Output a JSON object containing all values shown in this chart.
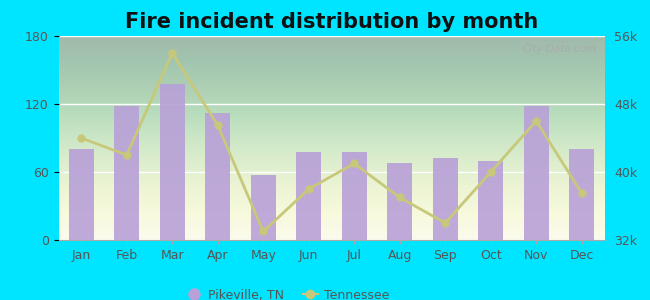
{
  "title": "Fire incident distribution by month",
  "months": [
    "Jan",
    "Feb",
    "Mar",
    "Apr",
    "May",
    "Jun",
    "Jul",
    "Aug",
    "Sep",
    "Oct",
    "Nov",
    "Dec"
  ],
  "pikeville_values": [
    80,
    118,
    138,
    112,
    57,
    78,
    78,
    68,
    72,
    70,
    118,
    80
  ],
  "tennessee_values": [
    44000,
    42000,
    54000,
    45500,
    33000,
    38000,
    41000,
    37000,
    34000,
    40000,
    46000,
    37500
  ],
  "bar_color": "#b8a0d8",
  "line_color": "#c8c87a",
  "background_outer": "#00e5ff",
  "background_plot_top": "#d8eec8",
  "background_plot_bottom": "#f8f8f0",
  "ylim_left": [
    0,
    180
  ],
  "ylim_right": [
    32000,
    56000
  ],
  "yticks_left": [
    0,
    60,
    120,
    180
  ],
  "yticks_right": [
    32000,
    40000,
    48000,
    56000
  ],
  "title_fontsize": 15,
  "watermark_text": "City-Data.com",
  "legend_pikeville_color": "#b8a0d8",
  "legend_tennessee_color": "#c8c87a",
  "tick_color": "#555555",
  "tick_fontsize": 9
}
